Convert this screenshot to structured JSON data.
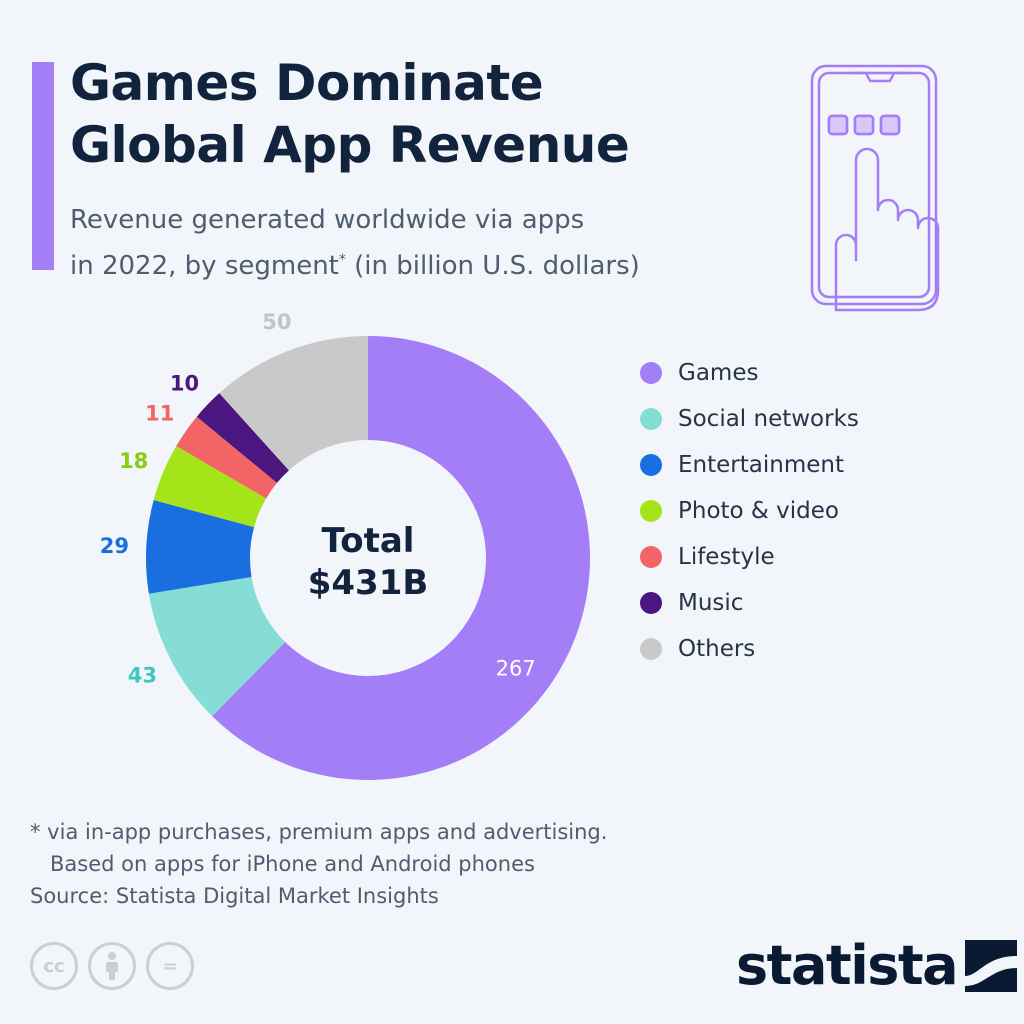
{
  "header": {
    "title_line1": "Games Dominate",
    "title_line2": "Global App Revenue",
    "subtitle_line1": "Revenue generated worldwide via apps",
    "subtitle_line2a": "in 2022, by segment",
    "subtitle_asterisk": "*",
    "subtitle_line2b": " (in billion U.S. dollars)"
  },
  "center_label": {
    "line1": "Total",
    "line2": "$431B"
  },
  "chart_data": {
    "type": "pie",
    "donut": true,
    "categories": [
      "Games",
      "Social networks",
      "Entertainment",
      "Photo & video",
      "Lifestyle",
      "Music",
      "Others"
    ],
    "values": [
      267,
      43,
      29,
      18,
      11,
      10,
      50
    ],
    "colors": [
      "#a37ef7",
      "#86ddd6",
      "#1a6fe0",
      "#a6e41a",
      "#f26465",
      "#4b1680",
      "#c9c9c9"
    ],
    "label_colors": [
      "#ffffff",
      "#3ec7bd",
      "#1a6fe0",
      "#8acc10",
      "#f26465",
      "#4b1680",
      "#c4c4c4"
    ],
    "legend_position": "right",
    "title": "Games Dominate Global App Revenue"
  },
  "footnote": {
    "line1": "* via in-app purchases, premium apps and advertising.",
    "line2": "Based on apps for iPhone and Android phones"
  },
  "source": "Source: Statista Digital Market Insights",
  "license_icons": [
    {
      "icon": "cc-icon",
      "text": "cc"
    },
    {
      "icon": "attribution-icon",
      "text": ""
    },
    {
      "icon": "no-derivatives-icon",
      "text": "="
    }
  ],
  "brand": {
    "name": "statista",
    "icon": "statista-logo-icon"
  }
}
